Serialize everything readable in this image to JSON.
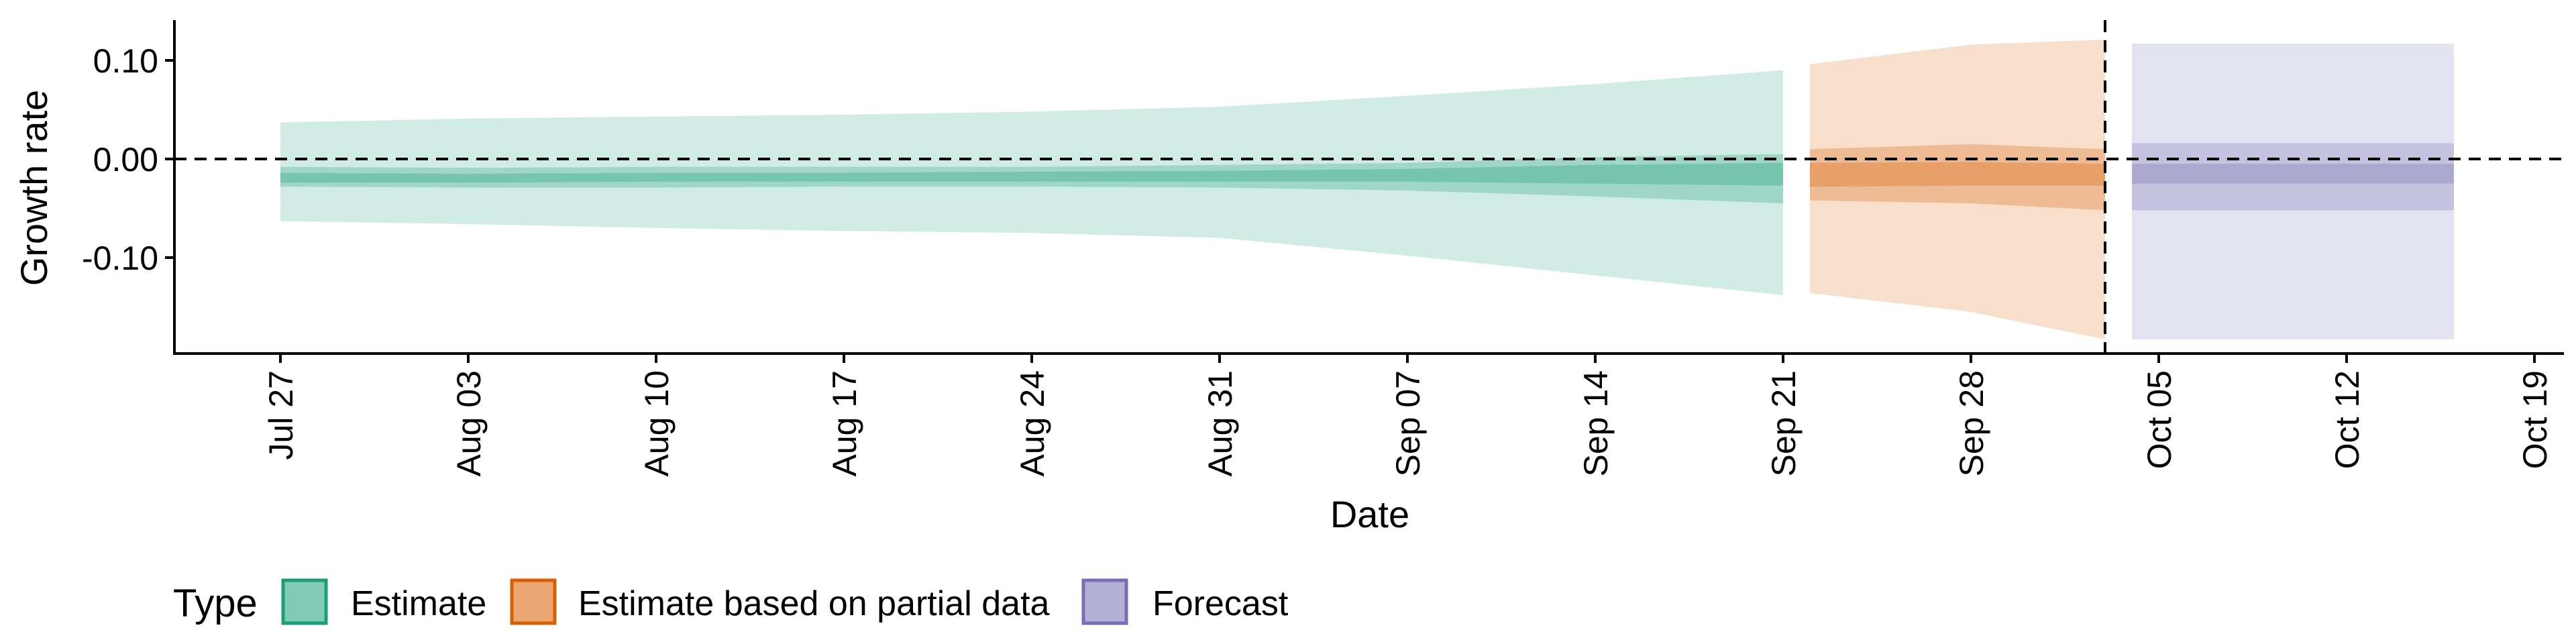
{
  "chart_data": {
    "type": "area",
    "xlabel": "Date",
    "ylabel": "Growth rate",
    "legend_title": "Type",
    "legend_position": "bottom-left",
    "grid": false,
    "x_axis": {
      "type": "date",
      "range": [
        "2020-07-27",
        "2020-10-19"
      ],
      "ticks": [
        "2020-07-27",
        "2020-08-03",
        "2020-08-10",
        "2020-08-17",
        "2020-08-24",
        "2020-08-31",
        "2020-09-07",
        "2020-09-14",
        "2020-09-21",
        "2020-09-28",
        "2020-10-05",
        "2020-10-12",
        "2020-10-19"
      ],
      "tick_labels": [
        "Jul 27",
        "Aug 03",
        "Aug 10",
        "Aug 17",
        "Aug 24",
        "Aug 31",
        "Sep 07",
        "Sep 14",
        "Sep 21",
        "Sep 28",
        "Oct 05",
        "Oct 12",
        "Oct 19"
      ]
    },
    "y_axis": {
      "range": [
        -0.2,
        0.14
      ],
      "ticks": [
        0.1,
        0.0,
        -0.1
      ],
      "tick_labels": [
        "0.10",
        "0.00",
        "-0.10"
      ]
    },
    "reference_lines": [
      {
        "orientation": "horizontal",
        "value": 0,
        "style": "dashed"
      },
      {
        "orientation": "vertical",
        "value": "2020-10-03",
        "style": "dashed"
      }
    ],
    "series": [
      {
        "name": "Estimate",
        "color": "#1b9e77",
        "x": [
          "2020-07-27",
          "2020-08-03",
          "2020-08-10",
          "2020-08-17",
          "2020-08-24",
          "2020-08-31",
          "2020-09-07",
          "2020-09-14",
          "2020-09-21"
        ],
        "outer_upper": [
          0.037,
          0.041,
          0.043,
          0.045,
          0.048,
          0.053,
          0.064,
          0.076,
          0.09
        ],
        "outer_lower": [
          -0.063,
          -0.066,
          -0.07,
          -0.073,
          -0.075,
          -0.08,
          -0.098,
          -0.118,
          -0.138
        ],
        "inner_upper": [
          -0.008,
          -0.009,
          -0.008,
          -0.008,
          -0.008,
          -0.006,
          -0.004,
          0.002,
          0.005
        ],
        "inner_lower": [
          -0.028,
          -0.029,
          -0.029,
          -0.028,
          -0.028,
          -0.029,
          -0.032,
          -0.038,
          -0.045
        ],
        "core_upper": [
          -0.014,
          -0.015,
          -0.014,
          -0.014,
          -0.013,
          -0.012,
          -0.01,
          -0.006,
          -0.004
        ],
        "core_lower": [
          -0.024,
          -0.024,
          -0.023,
          -0.023,
          -0.023,
          -0.023,
          -0.023,
          -0.025,
          -0.027
        ]
      },
      {
        "name": "Estimate based on partial data",
        "color": "#d95f02",
        "x": [
          "2020-09-22",
          "2020-09-28",
          "2020-10-03"
        ],
        "outer_upper": [
          0.096,
          0.116,
          0.121
        ],
        "outer_lower": [
          -0.136,
          -0.155,
          -0.183
        ],
        "inner_upper": [
          0.01,
          0.015,
          0.01
        ],
        "inner_lower": [
          -0.042,
          -0.045,
          -0.052
        ],
        "core_upper": [
          -0.004,
          -0.003,
          -0.005
        ],
        "core_lower": [
          -0.028,
          -0.027,
          -0.027
        ]
      },
      {
        "name": "Forecast",
        "color": "#7570b3",
        "x": [
          "2020-10-04",
          "2020-10-16"
        ],
        "outer_upper": [
          0.117,
          0.117
        ],
        "outer_lower": [
          -0.183,
          -0.183
        ],
        "inner_upper": [
          0.016,
          0.016
        ],
        "inner_lower": [
          -0.052,
          -0.052
        ],
        "core_upper": [
          -0.005,
          -0.005
        ],
        "core_lower": [
          -0.025,
          -0.025
        ]
      }
    ]
  }
}
